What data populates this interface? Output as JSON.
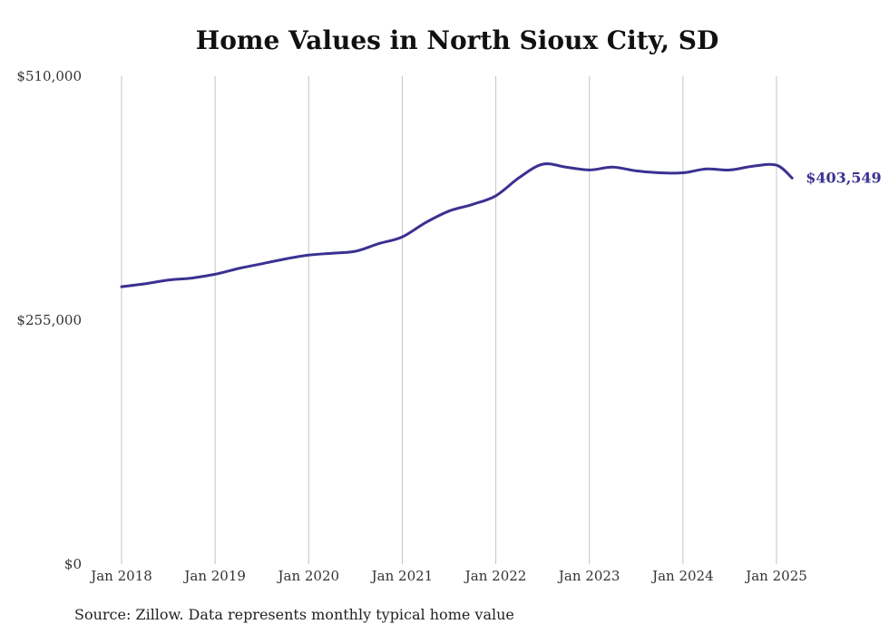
{
  "chart_data": {
    "type": "line",
    "title": "Home Values in North Sioux City, SD",
    "xlabel": "",
    "ylabel": "",
    "ylim": [
      0,
      510000
    ],
    "y_ticks": [
      "$0",
      "$255,000",
      "$510,000"
    ],
    "y_tick_values": [
      0,
      255000,
      510000
    ],
    "x_ticks": [
      "Jan 2018",
      "Jan 2019",
      "Jan 2020",
      "Jan 2021",
      "Jan 2022",
      "Jan 2023",
      "Jan 2024",
      "Jan 2025"
    ],
    "x_tick_years": [
      2018,
      2019,
      2020,
      2021,
      2022,
      2023,
      2024,
      2025
    ],
    "grid": "vertical",
    "line_color": "#3b3192",
    "end_label": "$403,549",
    "series": [
      {
        "x": [
          "2018-01",
          "2018-04",
          "2018-07",
          "2018-10",
          "2019-01",
          "2019-04",
          "2019-07",
          "2019-10",
          "2020-01",
          "2020-04",
          "2020-07",
          "2020-10",
          "2021-01",
          "2021-04",
          "2021-07",
          "2021-10",
          "2022-01",
          "2022-04",
          "2022-07",
          "2022-10",
          "2023-01",
          "2023-04",
          "2023-07",
          "2023-10",
          "2024-01",
          "2024-04",
          "2024-07",
          "2024-10",
          "2025-01",
          "2025-03"
        ],
        "values": [
          290000,
          293000,
          297000,
          299000,
          303000,
          309000,
          314000,
          319000,
          323000,
          325000,
          327000,
          335000,
          342000,
          357000,
          369000,
          376000,
          385000,
          404000,
          418000,
          415000,
          412000,
          415000,
          411000,
          409000,
          409000,
          413000,
          412000,
          416000,
          417000,
          403549
        ]
      }
    ]
  },
  "footer": {
    "source": "Source: Zillow. Data represents monthly typical home value"
  }
}
